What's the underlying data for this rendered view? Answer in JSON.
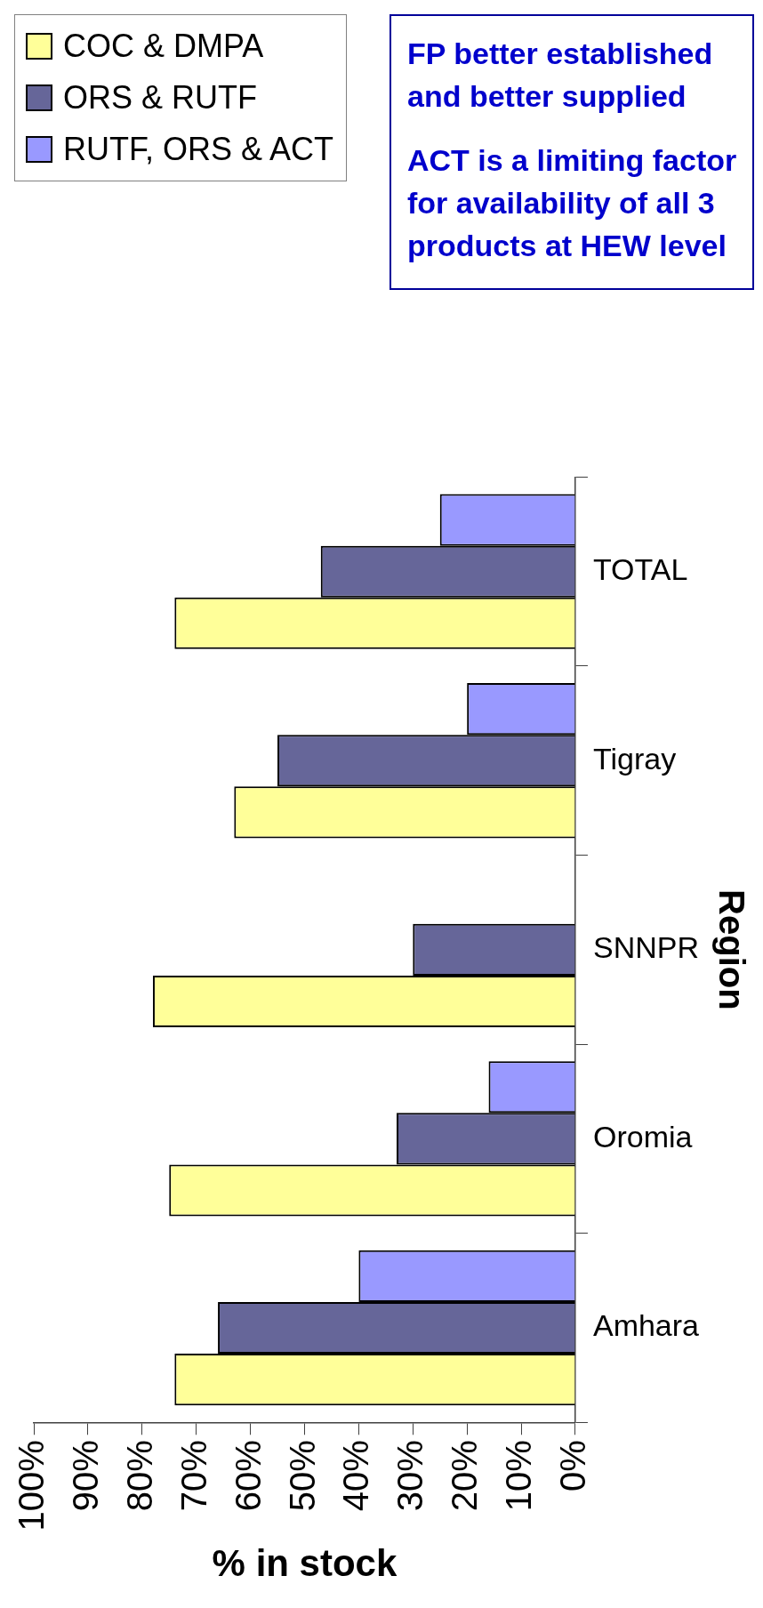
{
  "chart_data": {
    "type": "bar",
    "orientation": "horizontal",
    "xlabel": "% in stock",
    "ylabel": "Region",
    "categories": [
      "TOTAL",
      "Tigray",
      "SNNPR",
      "Oromia",
      "Amhara"
    ],
    "series": [
      {
        "name": "COC & DMPA",
        "color": "#ffff99",
        "values": [
          74,
          63,
          78,
          75,
          74
        ]
      },
      {
        "name": "ORS & RUTF",
        "color": "#666699",
        "values": [
          47,
          55,
          30,
          33,
          66
        ]
      },
      {
        "name": "RUTF, ORS & ACT",
        "color": "#9999ff",
        "values": [
          25,
          20,
          null,
          16,
          40
        ]
      }
    ],
    "xlim": [
      100,
      0
    ],
    "xticks": [
      {
        "value": 100,
        "label": "100%"
      },
      {
        "value": 90,
        "label": "90%"
      },
      {
        "value": 80,
        "label": "80%"
      },
      {
        "value": 70,
        "label": "70%"
      },
      {
        "value": 60,
        "label": "60%"
      },
      {
        "value": 50,
        "label": "50%"
      },
      {
        "value": 40,
        "label": "40%"
      },
      {
        "value": 30,
        "label": "30%"
      },
      {
        "value": 20,
        "label": "20%"
      },
      {
        "value": 10,
        "label": "10%"
      },
      {
        "value": 0,
        "label": "0%"
      }
    ],
    "legend": "top left",
    "annotations": [
      "FP better established and better supplied",
      "ACT is a limiting factor for availability of all 3 products at HEW level"
    ]
  }
}
